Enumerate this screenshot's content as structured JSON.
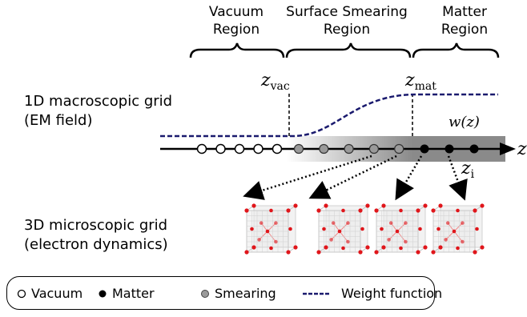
{
  "regions": {
    "vacuum": [
      "Vacuum",
      "Region"
    ],
    "smearing": [
      "Surface Smearing",
      "Region"
    ],
    "matter": [
      "Matter",
      "Region"
    ]
  },
  "boundaries": {
    "z_vac_var": "z",
    "z_vac_sub": "vac",
    "z_mat_var": "z",
    "z_mat_sub": "mat"
  },
  "axis": {
    "label": "z",
    "node_label_var": "z",
    "node_label_sub": "i"
  },
  "weight_label": "w(z)",
  "grids": {
    "macro": [
      "1D macroscopic grid",
      "(EM field)"
    ],
    "micro": [
      "3D microscopic grid",
      "(electron dynamics)"
    ]
  },
  "nodes": {
    "vacuum_count": 5,
    "smearing_count": 5,
    "matter_count": 3
  },
  "legend": {
    "items": [
      {
        "symbol": "open-circle",
        "label": "Vacuum"
      },
      {
        "symbol": "filled-circle",
        "label": "Matter"
      },
      {
        "symbol": "gray-circle",
        "label": "Smearing"
      },
      {
        "symbol": "dashed-line",
        "label": "Weight function"
      }
    ]
  },
  "colors": {
    "weight_line": "#1a1a6e",
    "matter_fill": "#000000",
    "smearing_fill": "#9a9a9a",
    "atom": "#e0161b"
  }
}
